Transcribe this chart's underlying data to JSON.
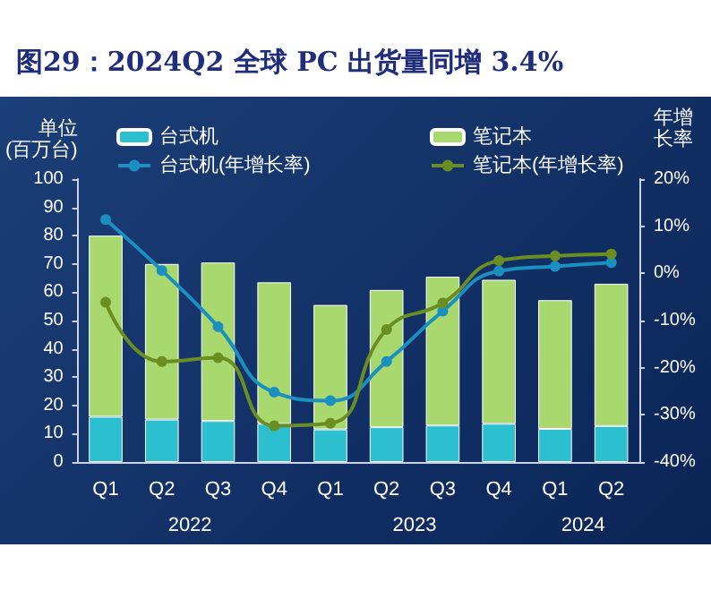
{
  "chart_data": {
    "type": "bar",
    "title": "图29：2024Q2 全球 PC 出货量同增 3.4%",
    "ylabel": "单位\n(百万台)",
    "y2label": "年增长率",
    "categories": [
      "Q1",
      "Q2",
      "Q3",
      "Q4",
      "Q1",
      "Q2",
      "Q3",
      "Q4",
      "Q1",
      "Q2"
    ],
    "annotations": [
      "2022",
      "2023",
      "2024"
    ],
    "stacked": true,
    "legend": "top",
    "grid": false,
    "marker": "circle",
    "ylim": [
      0,
      100
    ],
    "yticks": [
      0,
      10,
      20,
      30,
      40,
      50,
      60,
      70,
      80,
      90,
      100
    ],
    "y2lim": [
      -40,
      20
    ],
    "y2ticks": [
      {
        "value": -40,
        "label": "-40%"
      },
      {
        "value": -30,
        "label": "-30%"
      },
      {
        "value": -20,
        "label": "-20%"
      },
      {
        "value": -10,
        "label": "-10%"
      },
      {
        "value": 0,
        "label": "0%"
      },
      {
        "value": 10,
        "label": "10%"
      },
      {
        "value": 20,
        "label": "20%"
      }
    ],
    "series": [
      {
        "name": "台式机",
        "color": "#2bbfcf",
        "values": [
          16,
          15,
          14.5,
          13.5,
          11.5,
          12.3,
          12.9,
          13.5,
          11.7,
          12.7
        ]
      },
      {
        "name": "笔记本",
        "color": "#a9d86e",
        "values": [
          64,
          55,
          56,
          50,
          44,
          48.5,
          52.6,
          50.9,
          45.5,
          50.3
        ]
      },
      {
        "name": "台式机(年增长率)",
        "type": "line",
        "axis": "y2",
        "color": "#1a8fc0",
        "values": [
          11.4,
          0.6,
          -11.3,
          -25.2,
          -27,
          -18.7,
          -8,
          0.5,
          1.5,
          2.3
        ]
      },
      {
        "name": "笔记本(年增长率)",
        "type": "line",
        "axis": "y2",
        "color": "#6b8e23",
        "values": [
          -6.1,
          -18.7,
          -17.9,
          -32.3,
          -31.8,
          -11.9,
          -6.3,
          2.7,
          3.7,
          4.1
        ]
      }
    ]
  }
}
